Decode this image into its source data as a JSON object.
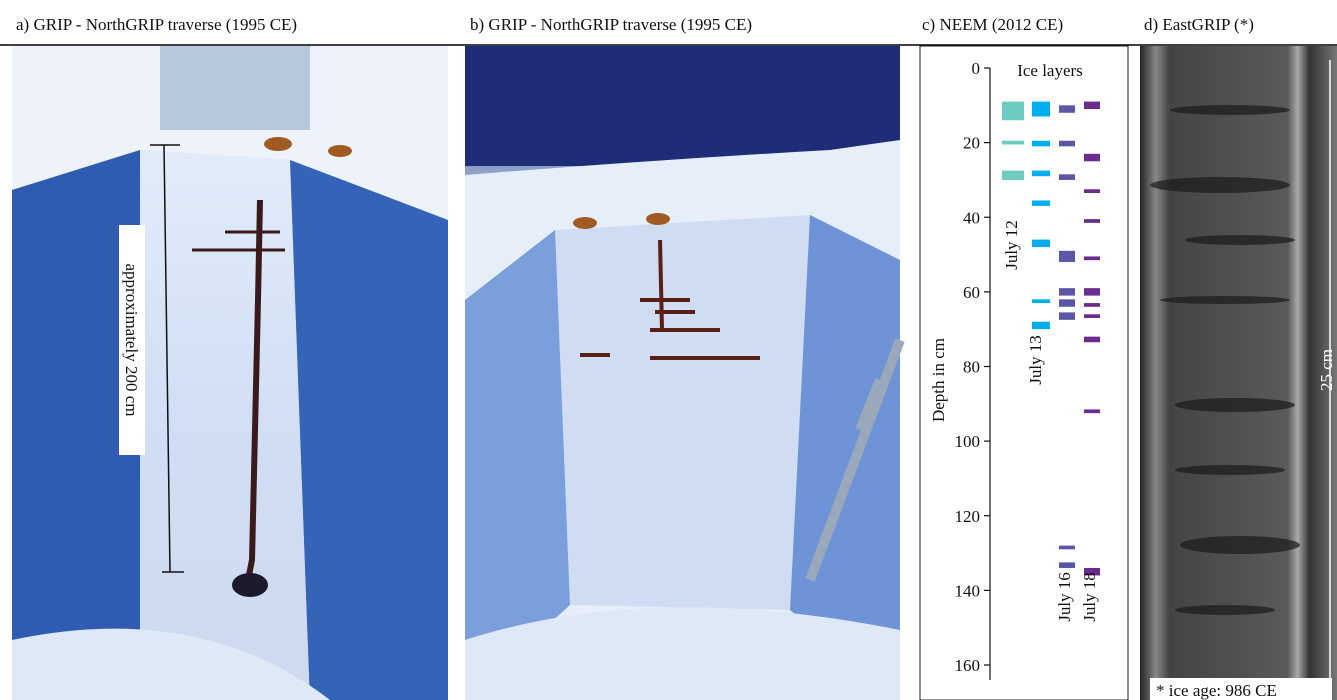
{
  "panels": {
    "a": {
      "title": "a) GRIP - NorthGRIP traverse (1995 CE)",
      "annotation": "approximately 200 cm"
    },
    "b": {
      "title": "b) GRIP - NorthGRIP traverse (1995 CE)"
    },
    "d": {
      "title": "d) EastGRIP (*)",
      "scale_label": "25 cm",
      "footnote": "* ice age: 986 CE"
    }
  },
  "chart_data": {
    "type": "interval",
    "title": "c) NEEM (2012 CE)",
    "subtitle": "Ice layers",
    "ylabel": "Depth in cm",
    "ylim": [
      0,
      160
    ],
    "yticks": [
      0,
      20,
      40,
      60,
      80,
      100,
      120,
      140,
      160
    ],
    "inverted": true,
    "series": [
      {
        "name": "July 12",
        "color": "#6dcbbf",
        "values": [
          [
            9,
            14
          ],
          [
            19.5,
            20.5
          ],
          [
            27.5,
            30
          ]
        ]
      },
      {
        "name": "July 13",
        "color": "#00aeef",
        "values": [
          [
            9,
            13
          ],
          [
            19.5,
            21
          ],
          [
            27.5,
            29
          ],
          [
            35.5,
            37
          ],
          [
            46,
            48
          ],
          [
            62,
            63
          ],
          [
            68,
            70
          ]
        ]
      },
      {
        "name": "July 16",
        "color": "#5b57a6",
        "values": [
          [
            10,
            12
          ],
          [
            19.5,
            21
          ],
          [
            28.5,
            30
          ],
          [
            49,
            52
          ],
          [
            59,
            61
          ],
          [
            62,
            64
          ],
          [
            65.5,
            67.5
          ],
          [
            128,
            129
          ],
          [
            132.5,
            134
          ]
        ]
      },
      {
        "name": "July 18",
        "color": "#6b2c8e",
        "values": [
          [
            9,
            11
          ],
          [
            23,
            25
          ],
          [
            32.5,
            33.5
          ],
          [
            40.5,
            41.5
          ],
          [
            50.5,
            51.5
          ],
          [
            59,
            61
          ],
          [
            63,
            64
          ],
          [
            66,
            67
          ],
          [
            72,
            73.5
          ],
          [
            91.5,
            92.5
          ],
          [
            134,
            136
          ]
        ]
      }
    ]
  }
}
